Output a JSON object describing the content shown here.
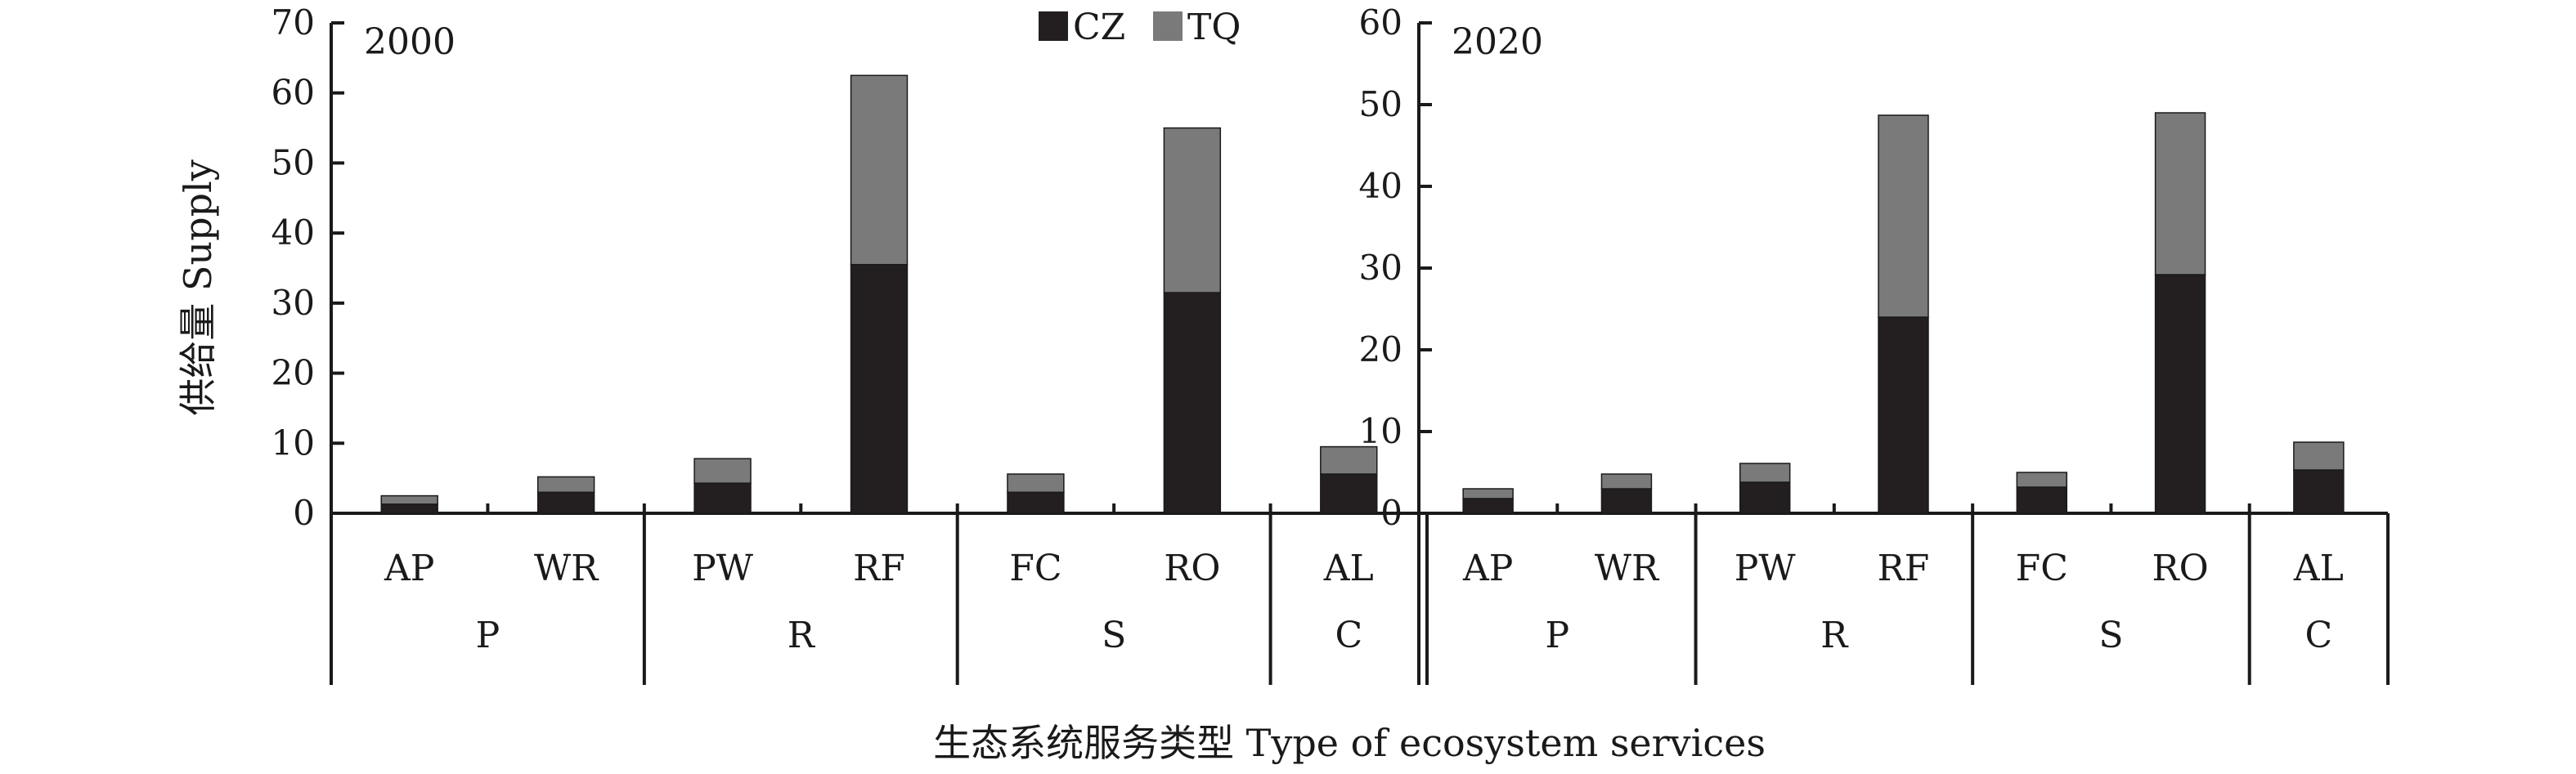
{
  "chart_data": {
    "type": "bar",
    "stacked": true,
    "xlabel": "生态系统服务类型 Type of ecosystem services",
    "ylabel": "供给量 Supply",
    "legend": {
      "placement": "top-right of first panel",
      "entries": [
        {
          "name": "CZ",
          "color": "#231f20"
        },
        {
          "name": "TQ",
          "color": "#7a7a7a"
        }
      ]
    },
    "categories": [
      "AP",
      "WR",
      "PW",
      "RF",
      "FC",
      "RO",
      "AL"
    ],
    "groups": [
      {
        "name": "P",
        "categories": [
          "AP",
          "WR"
        ]
      },
      {
        "name": "R",
        "categories": [
          "PW",
          "RF"
        ]
      },
      {
        "name": "S",
        "categories": [
          "FC",
          "RO"
        ]
      },
      {
        "name": "C",
        "categories": [
          "AL"
        ]
      }
    ],
    "panels": [
      {
        "title": "2000",
        "ylim": [
          0,
          70
        ],
        "yticks": [
          0,
          10,
          20,
          30,
          40,
          50,
          60,
          70
        ],
        "series": [
          {
            "name": "CZ",
            "values": [
              1.3,
              3.0,
              4.3,
              35.5,
              3.0,
              31.5,
              5.6
            ]
          },
          {
            "name": "TQ",
            "values": [
              1.2,
              2.2,
              3.5,
              27.0,
              2.6,
              23.5,
              3.9
            ]
          }
        ]
      },
      {
        "title": "2020",
        "ylim": [
          0,
          60
        ],
        "yticks": [
          0,
          10,
          20,
          30,
          40,
          50,
          60
        ],
        "series": [
          {
            "name": "CZ",
            "values": [
              1.8,
              3.0,
              3.8,
              24.0,
              3.2,
              29.2,
              5.3
            ]
          },
          {
            "name": "TQ",
            "values": [
              1.2,
              1.8,
              2.3,
              24.7,
              1.8,
              19.8,
              3.4
            ]
          }
        ]
      }
    ]
  }
}
